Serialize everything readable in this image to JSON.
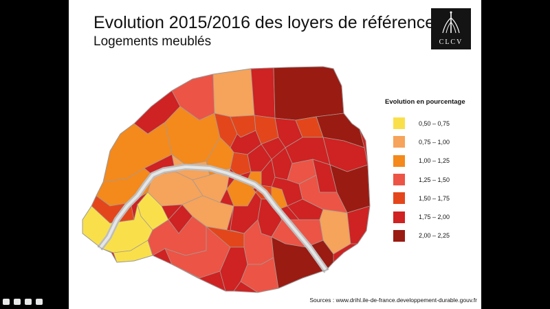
{
  "slide": {
    "title": "Evolution 2015/2016 des loyers de référence",
    "subtitle": "Logements meublés",
    "logo": {
      "icon": "clcv-logo-icon",
      "text": "CLCV"
    },
    "source": "Sources : www.drihl.ile-de-france.developpement-durable.gouv.fr"
  },
  "legend": {
    "title": "Evolution en pourcentage",
    "classes": [
      {
        "label": "0,50 – 0,75",
        "color": "#f9e04b"
      },
      {
        "label": "0,75 – 1,00",
        "color": "#f6a35b"
      },
      {
        "label": "1,00 – 1,25",
        "color": "#f4891c"
      },
      {
        "label": "1,25 – 1,50",
        "color": "#ec5446"
      },
      {
        "label": "1,50 – 1,75",
        "color": "#e4461b"
      },
      {
        "label": "1,75 – 2,00",
        "color": "#cf2222"
      },
      {
        "label": "2,00 – 2,25",
        "color": "#9a1b12"
      }
    ]
  }
}
